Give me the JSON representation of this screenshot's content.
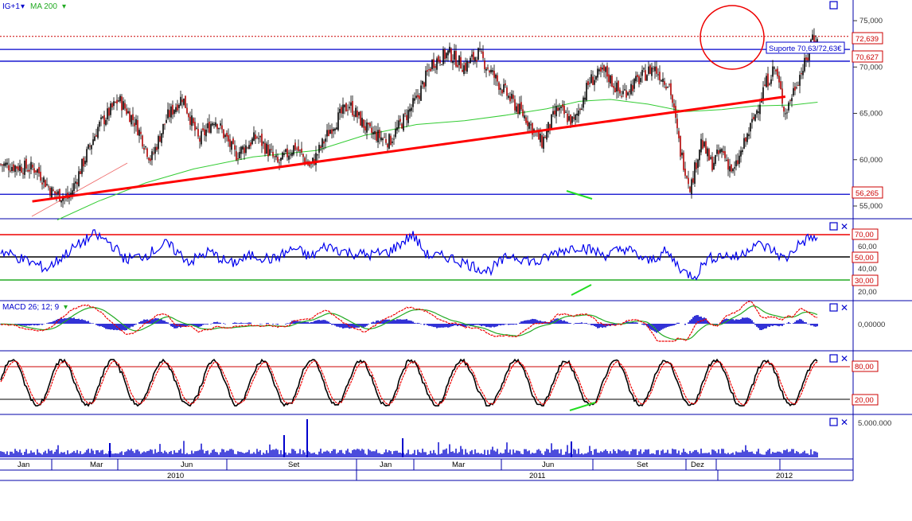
{
  "main_panel": {
    "symbol_label": "IG+1",
    "ma_label": "MA 200",
    "y_ticks": [
      "75,000",
      "70,000",
      "65,000",
      "60,000",
      "55,000"
    ],
    "price_badges": [
      "72,639",
      "70,627",
      "56,265"
    ],
    "support_label": "Suporte 70,63/72,63€",
    "colors": {
      "ma": "#22cc22",
      "trendline": "#ff0000",
      "level": "#0000dd",
      "candles": "#000000"
    }
  },
  "rsi_panel": {
    "y_ticks": [
      "60,00",
      "40,00",
      "20,00"
    ],
    "badges": [
      "70,00",
      "50,00",
      "30,00"
    ],
    "levels": [
      70,
      50,
      30
    ]
  },
  "macd_panel": {
    "label": "MACD 26; 12; 9",
    "y_ticks": [
      "0,00000"
    ]
  },
  "stoch_panel": {
    "badges": [
      "80,00",
      "20,00"
    ],
    "levels": [
      80,
      20
    ]
  },
  "volume_panel": {
    "y_ticks": [
      "5.000.000"
    ]
  },
  "time_axis": {
    "months": [
      "Jan",
      "Mar",
      "Jun",
      "Set",
      "Jan",
      "Mar",
      "Jun",
      "Set",
      "Dez"
    ],
    "years": [
      "2010",
      "2011",
      "2012"
    ]
  },
  "chart_data": {
    "type": "line",
    "title": "",
    "ylim": [
      53.5,
      76.5
    ],
    "x_range": [
      "2009-12",
      "2012-01"
    ],
    "series": [
      {
        "name": "MA 200",
        "values": []
      }
    ],
    "price_path": [
      [
        "2009-12-01",
        59.5
      ],
      [
        "2010-01-05",
        59.0
      ],
      [
        "2010-01-20",
        56.5
      ],
      [
        "2010-02-05",
        55.8
      ],
      [
        "2010-02-20",
        60.0
      ],
      [
        "2010-03-05",
        63.5
      ],
      [
        "2010-03-25",
        66.5
      ],
      [
        "2010-04-10",
        64.0
      ],
      [
        "2010-04-25",
        60.0
      ],
      [
        "2010-05-10",
        64.5
      ],
      [
        "2010-05-25",
        66.8
      ],
      [
        "2010-06-10",
        62.0
      ],
      [
        "2010-06-25",
        64.5
      ],
      [
        "2010-07-15",
        60.5
      ],
      [
        "2010-08-05",
        62.5
      ],
      [
        "2010-08-25",
        59.5
      ],
      [
        "2010-09-10",
        61.5
      ],
      [
        "2010-09-25",
        59.2
      ],
      [
        "2010-10-15",
        63.5
      ],
      [
        "2010-11-01",
        66.0
      ],
      [
        "2010-11-20",
        63.0
      ],
      [
        "2010-12-10",
        62.0
      ],
      [
        "2011-01-05",
        66.5
      ],
      [
        "2011-01-20",
        70.5
      ],
      [
        "2011-02-05",
        71.5
      ],
      [
        "2011-02-20",
        70.0
      ],
      [
        "2011-03-05",
        71.5
      ],
      [
        "2011-03-20",
        69.0
      ],
      [
        "2011-04-05",
        66.5
      ],
      [
        "2011-04-20",
        64.5
      ],
      [
        "2011-05-05",
        61.8
      ],
      [
        "2011-05-20",
        65.5
      ],
      [
        "2011-06-05",
        64.0
      ],
      [
        "2011-06-20",
        68.5
      ],
      [
        "2011-07-05",
        69.5
      ],
      [
        "2011-07-20",
        67.0
      ],
      [
        "2011-08-05",
        68.5
      ],
      [
        "2011-08-20",
        70.0
      ],
      [
        "2011-09-05",
        68.0
      ],
      [
        "2011-09-15",
        61.0
      ],
      [
        "2011-09-25",
        57.0
      ],
      [
        "2011-10-05",
        62.0
      ],
      [
        "2011-10-15",
        59.5
      ],
      [
        "2011-10-25",
        61.0
      ],
      [
        "2011-11-05",
        58.5
      ],
      [
        "2011-11-15",
        61.5
      ],
      [
        "2011-11-25",
        64.5
      ],
      [
        "2011-12-05",
        68.0
      ],
      [
        "2011-12-15",
        70.0
      ],
      [
        "2011-12-25",
        65.0
      ],
      [
        "2012-01-05",
        68.5
      ],
      [
        "2012-01-15",
        70.8
      ],
      [
        "2012-01-20",
        73.5
      ],
      [
        "2012-01-25",
        72.6
      ]
    ],
    "ma200": [
      [
        "2010-01-25",
        53.5
      ],
      [
        "2010-03-05",
        55.5
      ],
      [
        "2010-04-20",
        57.5
      ],
      [
        "2010-06-05",
        59.0
      ],
      [
        "2010-08-01",
        60.3
      ],
      [
        "2010-10-01",
        61.0
      ],
      [
        "2010-11-15",
        62.6
      ],
      [
        "2011-01-05",
        63.8
      ],
      [
        "2011-02-20",
        64.2
      ],
      [
        "2011-04-01",
        64.8
      ],
      [
        "2011-05-10",
        65.5
      ],
      [
        "2011-06-10",
        66.3
      ],
      [
        "2011-07-10",
        66.5
      ],
      [
        "2011-08-15",
        66.0
      ],
      [
        "2011-09-20",
        65.2
      ],
      [
        "2011-10-25",
        65.4
      ],
      [
        "2011-11-25",
        65.8
      ],
      [
        "2012-01-01",
        65.9
      ],
      [
        "2012-01-25",
        66.2
      ]
    ],
    "trendline": [
      [
        "2010-01-01",
        55.5
      ],
      [
        "2011-12-25",
        66.8
      ]
    ],
    "support_levels": [
      72.639,
      70.627,
      56.265
    ],
    "rsi_path": [
      [
        "2009-12-01",
        56
      ],
      [
        "2010-01-15",
        40
      ],
      [
        "2010-02-05",
        55
      ],
      [
        "2010-03-01",
        70
      ],
      [
        "2010-03-15",
        64
      ],
      [
        "2010-04-01",
        48
      ],
      [
        "2010-04-20",
        52
      ],
      [
        "2010-05-10",
        62
      ],
      [
        "2010-06-01",
        46
      ],
      [
        "2010-06-20",
        55
      ],
      [
        "2010-07-10",
        44
      ],
      [
        "2010-08-01",
        52
      ],
      [
        "2010-08-20",
        48
      ],
      [
        "2010-09-10",
        58
      ],
      [
        "2010-09-25",
        50
      ],
      [
        "2010-10-10",
        60
      ],
      [
        "2010-11-01",
        54
      ],
      [
        "2010-11-20",
        52
      ],
      [
        "2010-12-10",
        55
      ],
      [
        "2011-01-01",
        70
      ],
      [
        "2011-01-15",
        52
      ],
      [
        "2011-02-05",
        50
      ],
      [
        "2011-03-01",
        42
      ],
      [
        "2011-03-15",
        38
      ],
      [
        "2011-04-05",
        52
      ],
      [
        "2011-05-01",
        45
      ],
      [
        "2011-05-20",
        55
      ],
      [
        "2011-06-10",
        60
      ],
      [
        "2011-07-05",
        52
      ],
      [
        "2011-07-25",
        58
      ],
      [
        "2011-08-15",
        46
      ],
      [
        "2011-09-01",
        55
      ],
      [
        "2011-09-20",
        36
      ],
      [
        "2011-09-30",
        34
      ],
      [
        "2011-10-10",
        48
      ],
      [
        "2011-10-25",
        52
      ],
      [
        "2011-11-10",
        50
      ],
      [
        "2011-11-25",
        62
      ],
      [
        "2011-12-10",
        58
      ],
      [
        "2011-12-25",
        48
      ],
      [
        "2012-01-05",
        60
      ],
      [
        "2012-01-15",
        66
      ],
      [
        "2012-01-20",
        68
      ],
      [
        "2012-01-25",
        64
      ]
    ]
  }
}
